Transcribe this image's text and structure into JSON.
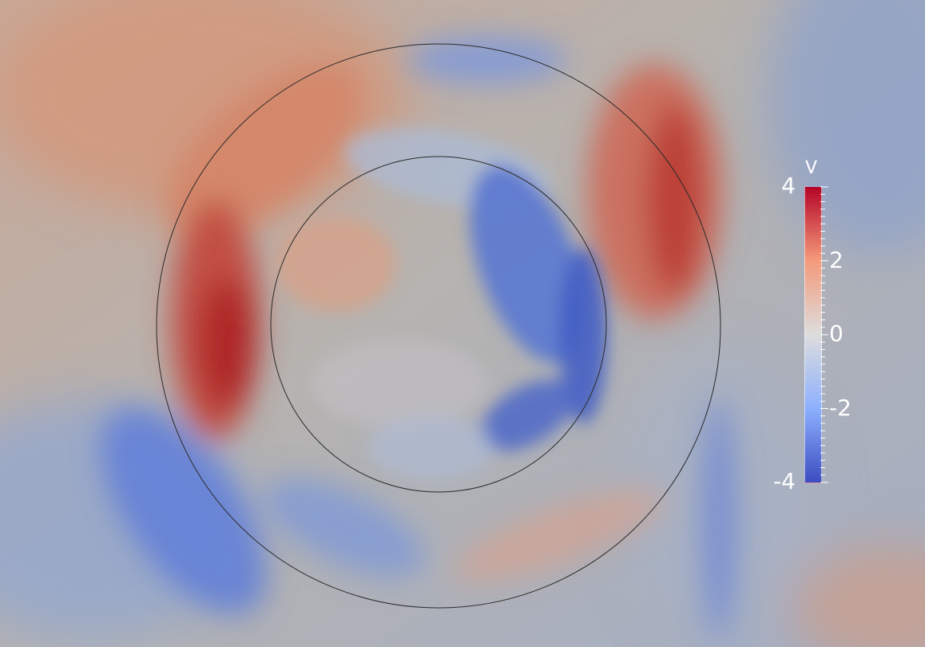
{
  "colorbar": {
    "title": "V",
    "range": [
      -4,
      4
    ],
    "tick_labels": [
      {
        "text": "4",
        "value": 4
      },
      {
        "text": "2",
        "value": 2
      },
      {
        "text": "0",
        "value": 0
      },
      {
        "text": "-2",
        "value": -2
      },
      {
        "text": "-4",
        "value": -4
      }
    ],
    "colormap": [
      "#3b4cc0",
      "#8db0fe",
      "#dddddd",
      "#f49a7b",
      "#b40426"
    ]
  }
}
